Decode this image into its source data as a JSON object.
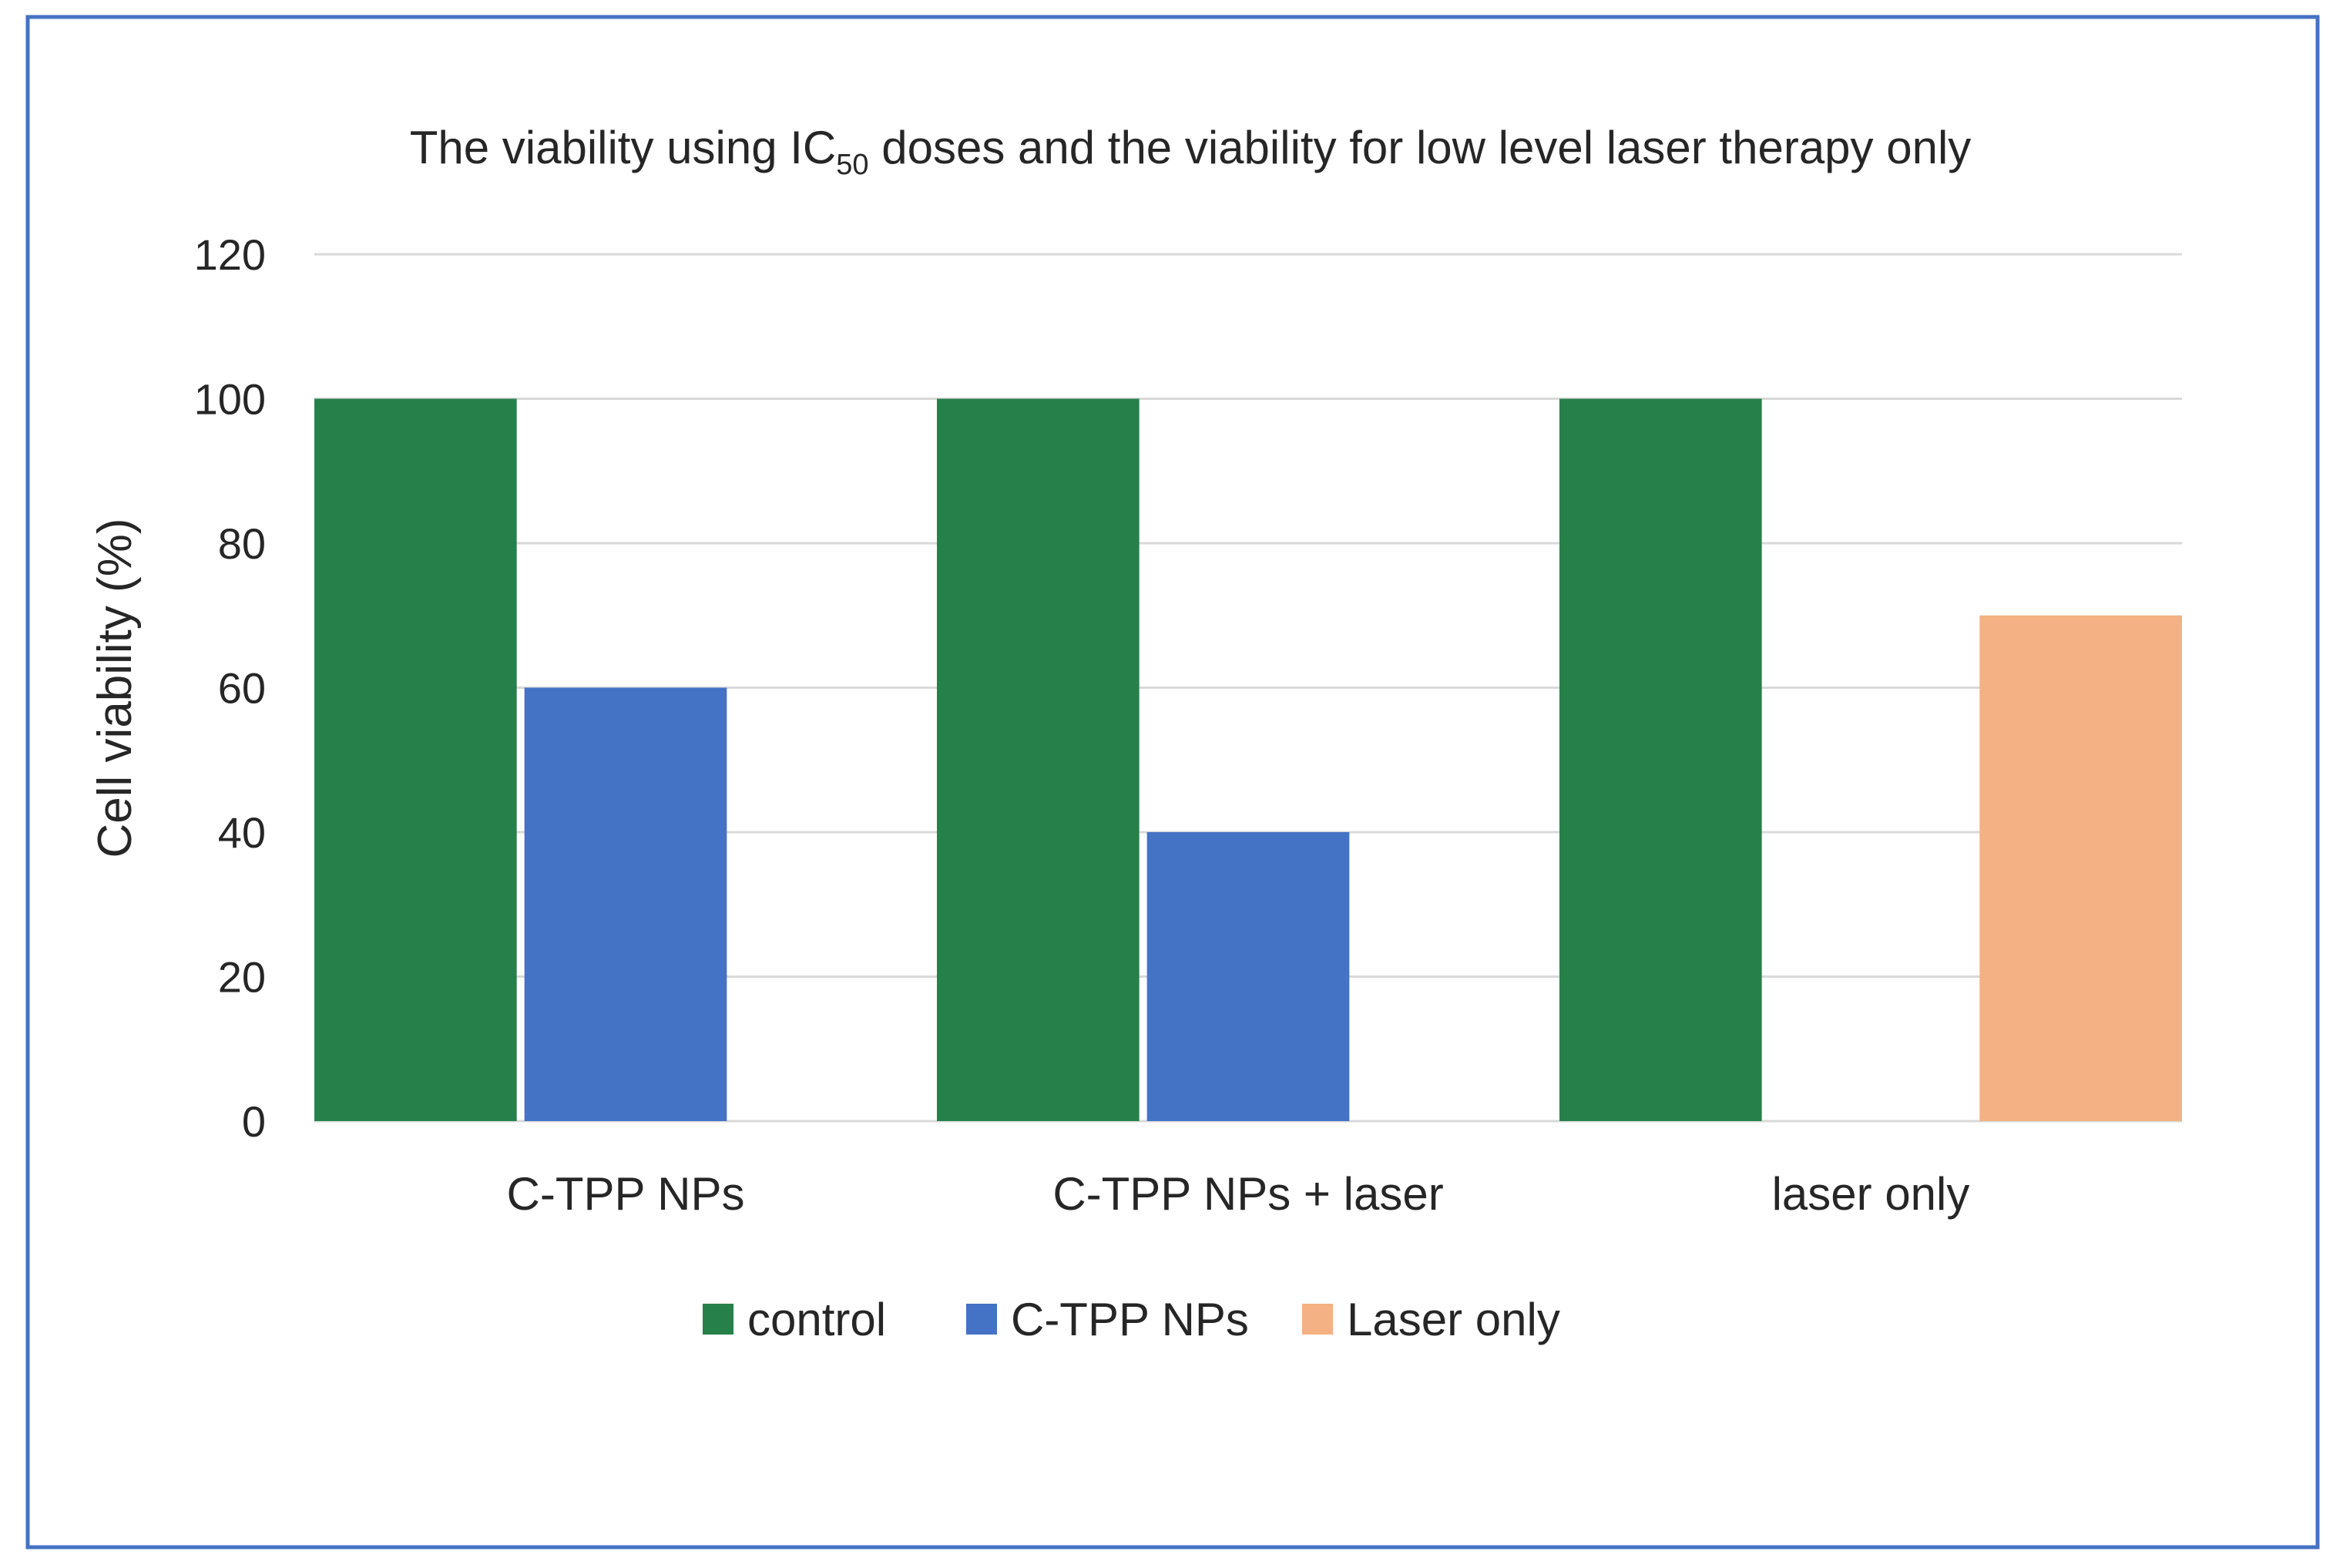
{
  "chart_data": {
    "type": "bar",
    "title": {
      "prefix": "The viability using IC",
      "subscript": "50",
      "suffix": " doses and the viability for low level laser therapy only"
    },
    "xlabel": "",
    "ylabel": "Cell viability (%)",
    "ylim": [
      0,
      120
    ],
    "yticks": [
      0,
      20,
      40,
      60,
      80,
      100,
      120
    ],
    "grid": true,
    "legend_position": "bottom",
    "categories": [
      "C-TPP NPs",
      "C-TPP NPs + laser",
      "laser only"
    ],
    "series": [
      {
        "name": "control",
        "color": "#26804a",
        "values": [
          100,
          100,
          100
        ]
      },
      {
        "name": "C-TPP NPs",
        "color": "#4472c4",
        "values": [
          60,
          40,
          null
        ]
      },
      {
        "name": "Laser only",
        "color": "#f4b183",
        "values": [
          null,
          null,
          70
        ]
      }
    ]
  }
}
